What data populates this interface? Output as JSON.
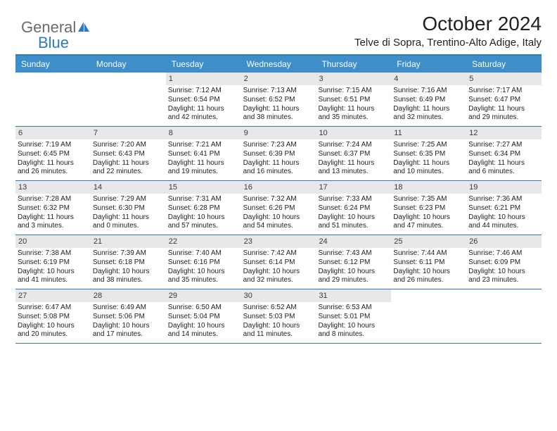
{
  "brand": {
    "text1": "General",
    "text2": "Blue"
  },
  "title": "October 2024",
  "subtitle": "Telve di Sopra, Trentino-Alto Adige, Italy",
  "colors": {
    "header_bg": "#3d8ec9",
    "header_border": "#2b7bc0",
    "daynum_bg": "#e8e8e8",
    "text": "#222222",
    "logo_gray": "#6b6b6b",
    "logo_blue": "#2b7bc0",
    "background": "#ffffff"
  },
  "typography": {
    "title_fontsize": 28,
    "subtitle_fontsize": 15,
    "dayhead_fontsize": 12,
    "daynum_fontsize": 11,
    "body_fontsize": 10
  },
  "day_headers": [
    "Sunday",
    "Monday",
    "Tuesday",
    "Wednesday",
    "Thursday",
    "Friday",
    "Saturday"
  ],
  "weeks": [
    [
      {
        "empty": true
      },
      {
        "empty": true
      },
      {
        "num": "1",
        "lines": [
          "Sunrise: 7:12 AM",
          "Sunset: 6:54 PM",
          "Daylight: 11 hours",
          "and 42 minutes."
        ]
      },
      {
        "num": "2",
        "lines": [
          "Sunrise: 7:13 AM",
          "Sunset: 6:52 PM",
          "Daylight: 11 hours",
          "and 38 minutes."
        ]
      },
      {
        "num": "3",
        "lines": [
          "Sunrise: 7:15 AM",
          "Sunset: 6:51 PM",
          "Daylight: 11 hours",
          "and 35 minutes."
        ]
      },
      {
        "num": "4",
        "lines": [
          "Sunrise: 7:16 AM",
          "Sunset: 6:49 PM",
          "Daylight: 11 hours",
          "and 32 minutes."
        ]
      },
      {
        "num": "5",
        "lines": [
          "Sunrise: 7:17 AM",
          "Sunset: 6:47 PM",
          "Daylight: 11 hours",
          "and 29 minutes."
        ]
      }
    ],
    [
      {
        "num": "6",
        "lines": [
          "Sunrise: 7:19 AM",
          "Sunset: 6:45 PM",
          "Daylight: 11 hours",
          "and 26 minutes."
        ]
      },
      {
        "num": "7",
        "lines": [
          "Sunrise: 7:20 AM",
          "Sunset: 6:43 PM",
          "Daylight: 11 hours",
          "and 22 minutes."
        ]
      },
      {
        "num": "8",
        "lines": [
          "Sunrise: 7:21 AM",
          "Sunset: 6:41 PM",
          "Daylight: 11 hours",
          "and 19 minutes."
        ]
      },
      {
        "num": "9",
        "lines": [
          "Sunrise: 7:23 AM",
          "Sunset: 6:39 PM",
          "Daylight: 11 hours",
          "and 16 minutes."
        ]
      },
      {
        "num": "10",
        "lines": [
          "Sunrise: 7:24 AM",
          "Sunset: 6:37 PM",
          "Daylight: 11 hours",
          "and 13 minutes."
        ]
      },
      {
        "num": "11",
        "lines": [
          "Sunrise: 7:25 AM",
          "Sunset: 6:35 PM",
          "Daylight: 11 hours",
          "and 10 minutes."
        ]
      },
      {
        "num": "12",
        "lines": [
          "Sunrise: 7:27 AM",
          "Sunset: 6:34 PM",
          "Daylight: 11 hours",
          "and 6 minutes."
        ]
      }
    ],
    [
      {
        "num": "13",
        "lines": [
          "Sunrise: 7:28 AM",
          "Sunset: 6:32 PM",
          "Daylight: 11 hours",
          "and 3 minutes."
        ]
      },
      {
        "num": "14",
        "lines": [
          "Sunrise: 7:29 AM",
          "Sunset: 6:30 PM",
          "Daylight: 11 hours",
          "and 0 minutes."
        ]
      },
      {
        "num": "15",
        "lines": [
          "Sunrise: 7:31 AM",
          "Sunset: 6:28 PM",
          "Daylight: 10 hours",
          "and 57 minutes."
        ]
      },
      {
        "num": "16",
        "lines": [
          "Sunrise: 7:32 AM",
          "Sunset: 6:26 PM",
          "Daylight: 10 hours",
          "and 54 minutes."
        ]
      },
      {
        "num": "17",
        "lines": [
          "Sunrise: 7:33 AM",
          "Sunset: 6:24 PM",
          "Daylight: 10 hours",
          "and 51 minutes."
        ]
      },
      {
        "num": "18",
        "lines": [
          "Sunrise: 7:35 AM",
          "Sunset: 6:23 PM",
          "Daylight: 10 hours",
          "and 47 minutes."
        ]
      },
      {
        "num": "19",
        "lines": [
          "Sunrise: 7:36 AM",
          "Sunset: 6:21 PM",
          "Daylight: 10 hours",
          "and 44 minutes."
        ]
      }
    ],
    [
      {
        "num": "20",
        "lines": [
          "Sunrise: 7:38 AM",
          "Sunset: 6:19 PM",
          "Daylight: 10 hours",
          "and 41 minutes."
        ]
      },
      {
        "num": "21",
        "lines": [
          "Sunrise: 7:39 AM",
          "Sunset: 6:18 PM",
          "Daylight: 10 hours",
          "and 38 minutes."
        ]
      },
      {
        "num": "22",
        "lines": [
          "Sunrise: 7:40 AM",
          "Sunset: 6:16 PM",
          "Daylight: 10 hours",
          "and 35 minutes."
        ]
      },
      {
        "num": "23",
        "lines": [
          "Sunrise: 7:42 AM",
          "Sunset: 6:14 PM",
          "Daylight: 10 hours",
          "and 32 minutes."
        ]
      },
      {
        "num": "24",
        "lines": [
          "Sunrise: 7:43 AM",
          "Sunset: 6:12 PM",
          "Daylight: 10 hours",
          "and 29 minutes."
        ]
      },
      {
        "num": "25",
        "lines": [
          "Sunrise: 7:44 AM",
          "Sunset: 6:11 PM",
          "Daylight: 10 hours",
          "and 26 minutes."
        ]
      },
      {
        "num": "26",
        "lines": [
          "Sunrise: 7:46 AM",
          "Sunset: 6:09 PM",
          "Daylight: 10 hours",
          "and 23 minutes."
        ]
      }
    ],
    [
      {
        "num": "27",
        "lines": [
          "Sunrise: 6:47 AM",
          "Sunset: 5:08 PM",
          "Daylight: 10 hours",
          "and 20 minutes."
        ]
      },
      {
        "num": "28",
        "lines": [
          "Sunrise: 6:49 AM",
          "Sunset: 5:06 PM",
          "Daylight: 10 hours",
          "and 17 minutes."
        ]
      },
      {
        "num": "29",
        "lines": [
          "Sunrise: 6:50 AM",
          "Sunset: 5:04 PM",
          "Daylight: 10 hours",
          "and 14 minutes."
        ]
      },
      {
        "num": "30",
        "lines": [
          "Sunrise: 6:52 AM",
          "Sunset: 5:03 PM",
          "Daylight: 10 hours",
          "and 11 minutes."
        ]
      },
      {
        "num": "31",
        "lines": [
          "Sunrise: 6:53 AM",
          "Sunset: 5:01 PM",
          "Daylight: 10 hours",
          "and 8 minutes."
        ]
      },
      {
        "empty": true
      },
      {
        "empty": true
      }
    ]
  ]
}
